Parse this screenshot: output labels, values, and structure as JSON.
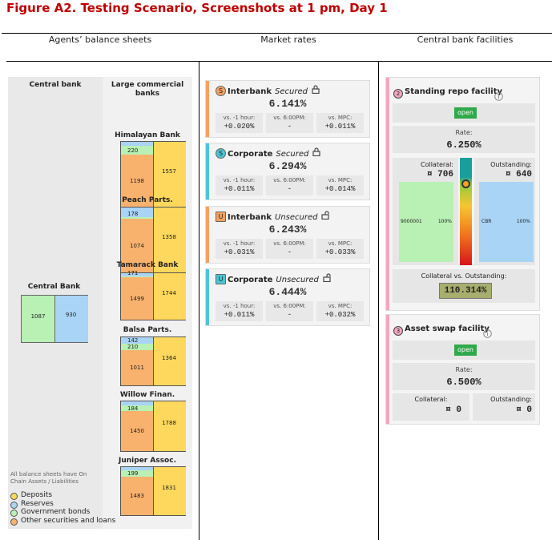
{
  "title": "Figure A2. Testing Scenario, Screenshots at 1 pm, Day 1",
  "columns": [
    "Agents’ balance sheets",
    "Market rates",
    "Central bank facilities"
  ],
  "balance_sheets": {
    "central_bank_header": "Central bank",
    "commercial_header": "Large commercial banks",
    "central_bank": {
      "name": "Central Bank",
      "assets": 1087,
      "liabilities": 930
    },
    "banks": [
      {
        "name": "Himalayan Bank",
        "bonds": 220,
        "other": 1198,
        "deposits": 1557
      },
      {
        "name": "Peach Parts.",
        "reserves": 178,
        "other": 1074,
        "deposits": 1358
      },
      {
        "name": "Tamarack Bank",
        "reserves": 171,
        "other": 1499,
        "deposits": 1744
      },
      {
        "name": "Balsa Parts.",
        "reserves": 142,
        "bonds": 210,
        "other": 1011,
        "deposits": 1364
      },
      {
        "name": "Willow Finan.",
        "bonds": 184,
        "other": 1450,
        "deposits": 1788
      },
      {
        "name": "Juniper Assoc.",
        "bonds": 199,
        "other": 1483,
        "deposits": 1831
      }
    ],
    "note": "All balance sheets have On Chain Assets / Liabilities",
    "legend": [
      "Deposits",
      "Reserves",
      "Government bonds",
      "Other securities and loans"
    ]
  },
  "market_rates": [
    {
      "icon": "S",
      "market": "Interbank",
      "kind": "Secured",
      "rate": "6.141%",
      "changes": [
        {
          "label": "vs. -1 hour:",
          "value": "+0.020%"
        },
        {
          "label": "vs. 6:00PM:",
          "value": "-"
        },
        {
          "label": "vs. MPC:",
          "value": "+0.011%"
        }
      ]
    },
    {
      "icon": "S",
      "market": "Corporate",
      "kind": "Secured",
      "rate": "6.294%",
      "changes": [
        {
          "label": "vs. -1 hour:",
          "value": "+0.011%"
        },
        {
          "label": "vs. 6:00PM:",
          "value": "-"
        },
        {
          "label": "vs. MPC:",
          "value": "+0.014%"
        }
      ]
    },
    {
      "icon": "U",
      "market": "Interbank",
      "kind": "Unsecured",
      "rate": "6.243%",
      "changes": [
        {
          "label": "vs. -1 hour:",
          "value": "+0.031%"
        },
        {
          "label": "vs. 6:00PM:",
          "value": "-"
        },
        {
          "label": "vs. MPC:",
          "value": "+0.033%"
        }
      ]
    },
    {
      "icon": "U",
      "market": "Corporate",
      "kind": "Unsecured",
      "rate": "6.444%",
      "changes": [
        {
          "label": "vs. -1 hour:",
          "value": "+0.011%"
        },
        {
          "label": "vs. 6:00PM:",
          "value": "-"
        },
        {
          "label": "vs. MPC:",
          "value": "+0.032%"
        }
      ]
    }
  ],
  "facilities": [
    {
      "number": "2",
      "name": "Standing repo facility",
      "status": "open",
      "rate_label": "Rate:",
      "rate": "6.250%",
      "collateral_label": "Collateral:",
      "collateral": "¤ 706",
      "outstanding_label": "Outstanding:",
      "outstanding": "¤ 640",
      "collateral_bar": {
        "id": "9000001",
        "share": "100%"
      },
      "outstanding_bar": {
        "id": "CBR",
        "share": "100%"
      },
      "ratio_label": "Collateral vs. Outstanding:",
      "ratio": "110.314%"
    },
    {
      "number": "3",
      "name": "Asset swap facility",
      "status": "open",
      "rate_label": "Rate:",
      "rate": "6.500%",
      "collateral_label": "Collateral:",
      "collateral": "¤ 0",
      "outstanding_label": "Outstanding:",
      "outstanding": "¤ 0"
    }
  ]
}
